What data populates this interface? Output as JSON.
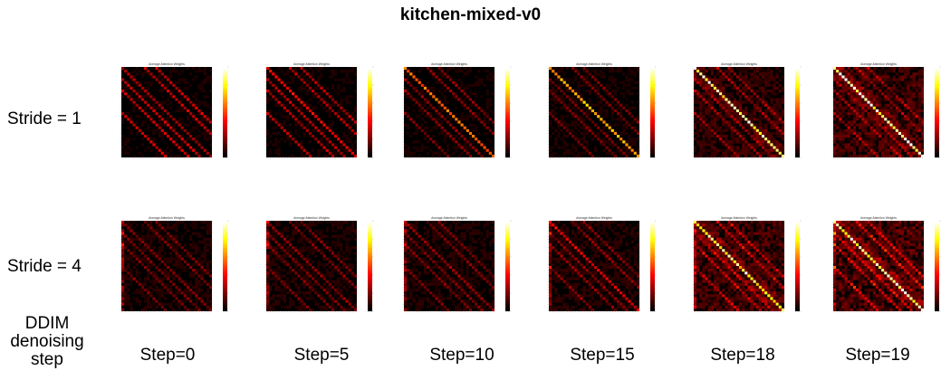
{
  "figure": {
    "title": "kitchen-mixed-v0",
    "rows": [
      {
        "label": "Stride = 1"
      },
      {
        "label": "Stride = 4"
      }
    ],
    "axis_label": [
      "DDIM",
      "denoising",
      "step"
    ],
    "steps": [
      "Step=0",
      "Step=5",
      "Step=10",
      "Step=15",
      "Step=18",
      "Step=19"
    ],
    "panel_title": "Average Attention Weights",
    "colormap": "hot",
    "colors": {
      "background": "#ffffff",
      "text": "#000000"
    }
  },
  "chart_data": {
    "type": "heatmap",
    "matrix_size": 32,
    "panels": [
      {
        "row": "Stride = 1",
        "step": 0,
        "diag_intensity": 0.25,
        "offdiag_intensity": 0.35,
        "noise": 0.1
      },
      {
        "row": "Stride = 1",
        "step": 5,
        "diag_intensity": 0.4,
        "offdiag_intensity": 0.3,
        "noise": 0.1
      },
      {
        "row": "Stride = 1",
        "step": 10,
        "diag_intensity": 0.6,
        "offdiag_intensity": 0.22,
        "noise": 0.1
      },
      {
        "row": "Stride = 1",
        "step": 15,
        "diag_intensity": 0.72,
        "offdiag_intensity": 0.18,
        "noise": 0.12
      },
      {
        "row": "Stride = 1",
        "step": 18,
        "diag_intensity": 0.95,
        "offdiag_intensity": 0.22,
        "noise": 0.22
      },
      {
        "row": "Stride = 1",
        "step": 19,
        "diag_intensity": 1.0,
        "offdiag_intensity": 0.2,
        "noise": 0.3
      },
      {
        "row": "Stride = 4",
        "step": 0,
        "diag_intensity": 0.18,
        "offdiag_intensity": 0.18,
        "noise": 0.14
      },
      {
        "row": "Stride = 4",
        "step": 5,
        "diag_intensity": 0.2,
        "offdiag_intensity": 0.18,
        "noise": 0.14
      },
      {
        "row": "Stride = 4",
        "step": 10,
        "diag_intensity": 0.22,
        "offdiag_intensity": 0.18,
        "noise": 0.14
      },
      {
        "row": "Stride = 4",
        "step": 15,
        "diag_intensity": 0.35,
        "offdiag_intensity": 0.2,
        "noise": 0.16
      },
      {
        "row": "Stride = 4",
        "step": 18,
        "diag_intensity": 0.85,
        "offdiag_intensity": 0.28,
        "noise": 0.3
      },
      {
        "row": "Stride = 4",
        "step": 19,
        "diag_intensity": 0.92,
        "offdiag_intensity": 0.3,
        "noise": 0.35
      }
    ]
  }
}
